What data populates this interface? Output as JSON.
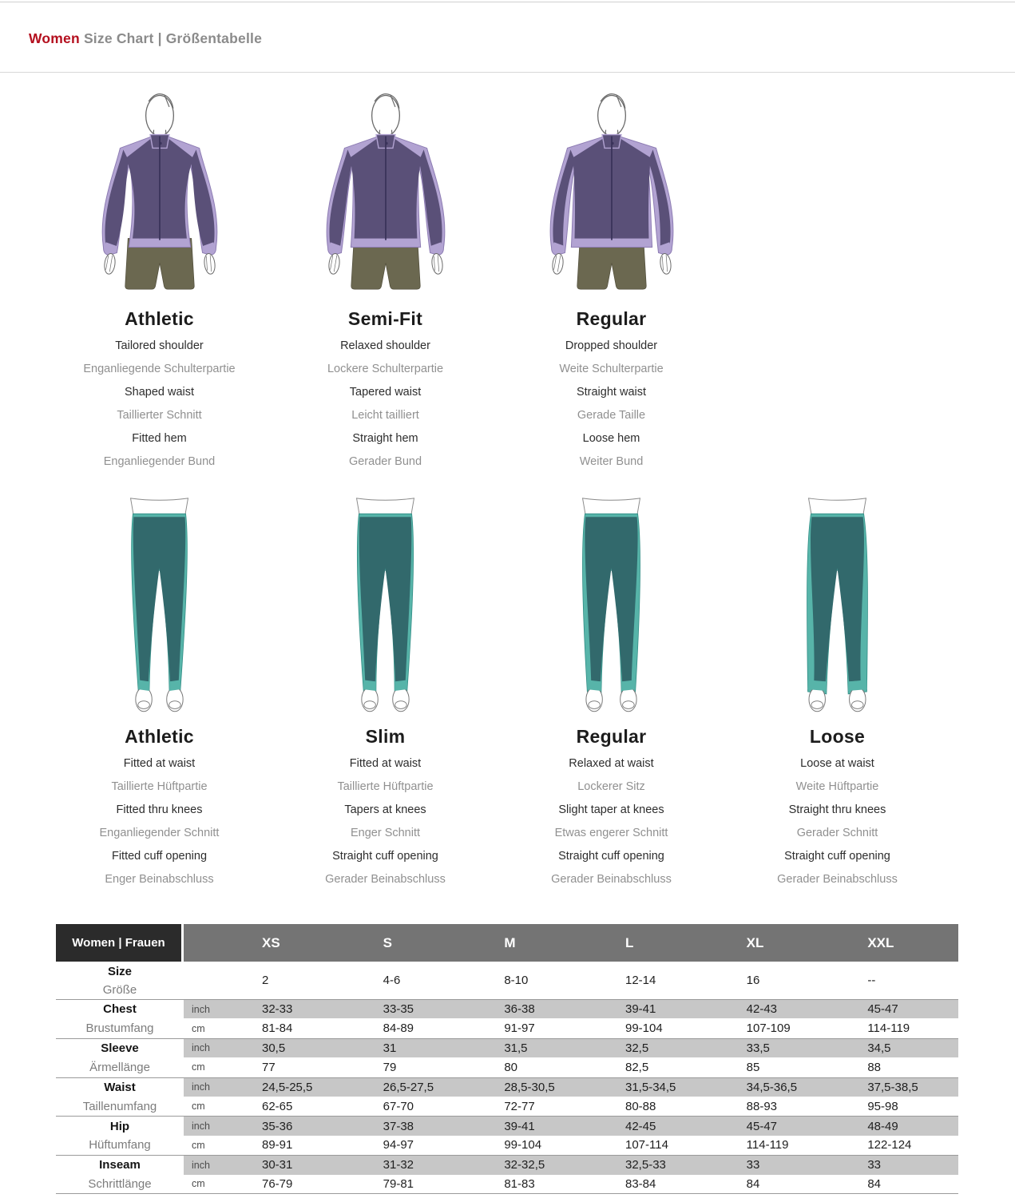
{
  "header": {
    "title_primary": "Women",
    "title_secondary": "Size Chart | Größentabelle"
  },
  "colors": {
    "accent_red": "#b40f1e",
    "title_gray": "#8b8b8b",
    "jacket_dark": "#5a5078",
    "jacket_light": "#b2a3d2",
    "jacket_outline": "#8d7cb3",
    "zipper": "#3a335a",
    "shorts_olive": "#6b6850",
    "shorts_outline": "#55523f",
    "pants_dark": "#32696c",
    "pants_light": "#57b4a9",
    "pants_outline": "#2f8c84",
    "figure_line": "#6a6a6a",
    "table_header_dark_bg": "#2b2b2b",
    "table_header_gray_bg": "#747474",
    "table_band_gray": "#c7c7c7",
    "table_separator": "#9a9a9a"
  },
  "jacket_fits": [
    {
      "name": "Athletic",
      "features": [
        "Tailored shoulder",
        "Enganliegende Schulterpartie",
        "Shaped waist",
        "Taillierter Schnitt",
        "Fitted hem",
        "Enganliegender Bund"
      ]
    },
    {
      "name": "Semi-Fit",
      "features": [
        "Relaxed shoulder",
        "Lockere Schulterpartie",
        "Tapered waist",
        "Leicht tailliert",
        "Straight hem",
        "Gerader Bund"
      ]
    },
    {
      "name": "Regular",
      "features": [
        "Dropped shoulder",
        "Weite Schulterpartie",
        "Straight waist",
        "Gerade Taille",
        "Loose hem",
        "Weiter Bund"
      ]
    }
  ],
  "pant_fits": [
    {
      "name": "Athletic",
      "features": [
        "Fitted at waist",
        "Taillierte Hüftpartie",
        "Fitted thru knees",
        "Enganliegender Schnitt",
        "Fitted cuff opening",
        "Enger Beinabschluss"
      ]
    },
    {
      "name": "Slim",
      "features": [
        "Fitted at waist",
        "Taillierte Hüftpartie",
        "Tapers at knees",
        "Enger Schnitt",
        "Straight cuff opening",
        "Gerader Beinabschluss"
      ]
    },
    {
      "name": "Regular",
      "features": [
        "Relaxed at waist",
        "Lockerer Sitz",
        "Slight taper at knees",
        "Etwas engerer Schnitt",
        "Straight cuff opening",
        "Gerader Beinabschluss"
      ]
    },
    {
      "name": "Loose",
      "features": [
        "Loose at waist",
        "Weite Hüftpartie",
        "Straight thru knees",
        "Gerader Schnitt",
        "Straight cuff opening",
        "Gerader Beinabschluss"
      ]
    }
  ],
  "size_table": {
    "corner_label": "Women | Frauen",
    "size_headers": [
      "XS",
      "S",
      "M",
      "L",
      "XL",
      "XXL"
    ],
    "units": [
      "inch",
      "cm"
    ],
    "size_row": {
      "label_en": "Size",
      "label_de": "Größe",
      "values": [
        "2",
        "4-6",
        "8-10",
        "12-14",
        "16",
        "--"
      ]
    },
    "measurements": [
      {
        "label_en": "Chest",
        "label_de": "Brustumfang",
        "inch": [
          "32-33",
          "33-35",
          "36-38",
          "39-41",
          "42-43",
          "45-47"
        ],
        "cm": [
          "81-84",
          "84-89",
          "91-97",
          "99-104",
          "107-109",
          "114-119"
        ]
      },
      {
        "label_en": "Sleeve",
        "label_de": "Ärmellänge",
        "inch": [
          "30,5",
          "31",
          "31,5",
          "32,5",
          "33,5",
          "34,5"
        ],
        "cm": [
          "77",
          "79",
          "80",
          "82,5",
          "85",
          "88"
        ]
      },
      {
        "label_en": "Waist",
        "label_de": "Taillenumfang",
        "inch": [
          "24,5-25,5",
          "26,5-27,5",
          "28,5-30,5",
          "31,5-34,5",
          "34,5-36,5",
          "37,5-38,5"
        ],
        "cm": [
          "62-65",
          "67-70",
          "72-77",
          "80-88",
          "88-93",
          "95-98"
        ]
      },
      {
        "label_en": "Hip",
        "label_de": "Hüftumfang",
        "inch": [
          "35-36",
          "37-38",
          "39-41",
          "42-45",
          "45-47",
          "48-49"
        ],
        "cm": [
          "89-91",
          "94-97",
          "99-104",
          "107-114",
          "114-119",
          "122-124"
        ]
      },
      {
        "label_en": "Inseam",
        "label_de": "Schrittlänge",
        "inch": [
          "30-31",
          "31-32",
          "32-32,5",
          "32,5-33",
          "33",
          "33"
        ],
        "cm": [
          "76-79",
          "79-81",
          "81-83",
          "83-84",
          "84",
          "84"
        ]
      }
    ]
  }
}
